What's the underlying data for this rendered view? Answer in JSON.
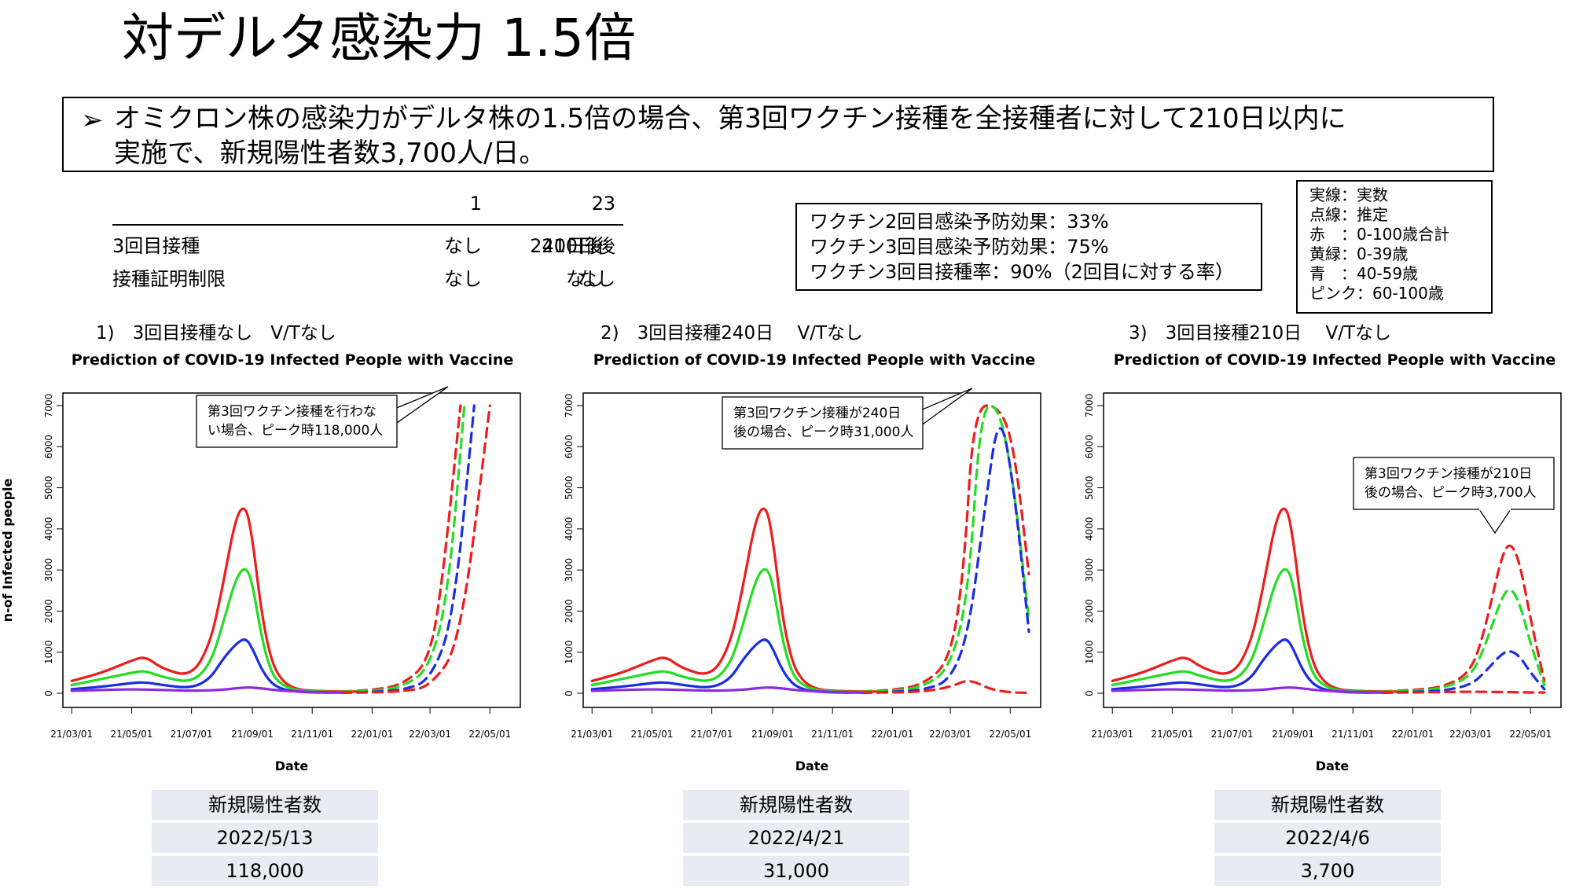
{
  "slide": {
    "title": "対デルタ感染力 1.5倍",
    "headline": {
      "bullet": "➢",
      "line1": "オミクロン株の感染力がデルタ株の1.5倍の場合、第3回ワクチン接種を全接種者に対して210日以内に",
      "line2": "実施で、新規陽性者数3,700人/日。"
    }
  },
  "scenario_table": {
    "columns": [
      "1",
      "2",
      "3"
    ],
    "rows": [
      {
        "label": "3回目接種",
        "values": [
          "なし",
          "240日後",
          "210日後"
        ]
      },
      {
        "label": "接種証明制限",
        "values": [
          "なし",
          "なし",
          "なし"
        ]
      }
    ]
  },
  "vaccine_box": {
    "lines": [
      "ワクチン2回目感染予防効果：33%",
      "ワクチン3回目感染予防効果：75%",
      "ワクチン3回目接種率：90%（2回目に対する率）"
    ]
  },
  "legend_box": {
    "lines": [
      "実線：実数",
      "点線：推定",
      "赤　：0-100歳合計",
      "黄緑：0-39歳",
      "青　：40-59歳",
      "ピンク：60-100歳"
    ]
  },
  "colors": {
    "red": "#ee1c1c",
    "green": "#22dd22",
    "blue": "#1a2ee0",
    "purple": "#8a2be2",
    "pink": "#ee82ee",
    "result_cell_bg": "#e8ebf3"
  },
  "chart_data": [
    {
      "type": "line",
      "scenario_label": "1)　3回目接種なし　V/Tなし",
      "title": "Prediction of COVID-19 Infected People with Vaccine",
      "xlabel": "Date",
      "ylabel": "n-of Infected people",
      "ylim": [
        0,
        7000
      ],
      "yticks": [
        0,
        1000,
        2000,
        3000,
        4000,
        5000,
        6000,
        7000
      ],
      "xticks": [
        "21/03/01",
        "21/05/01",
        "21/07/01",
        "21/09/01",
        "21/11/01",
        "22/01/01",
        "22/03/01",
        "22/05/01"
      ],
      "callout": [
        "第3回ワクチン接種を行わな",
        "い場合、ピーク時118,000人"
      ],
      "series": [
        {
          "name": "赤　：0-100歳合計",
          "style": "solid",
          "x": [
            "2021-03-01",
            "2021-04-01",
            "2021-05-01",
            "2021-05-15",
            "2021-06-01",
            "2021-07-01",
            "2021-07-20",
            "2021-08-01",
            "2021-08-15",
            "2021-08-25",
            "2021-09-01",
            "2021-09-10",
            "2021-09-20",
            "2021-10-01",
            "2021-10-15",
            "2021-11-01",
            "2021-12-01",
            "2021-12-15"
          ],
          "y": [
            300,
            500,
            800,
            900,
            600,
            400,
            1200,
            2500,
            4300,
            4600,
            3800,
            2000,
            800,
            300,
            100,
            60,
            40,
            40
          ]
        },
        {
          "name": "赤　：0-100歳合計",
          "style": "dashed",
          "x": [
            "2021-12-01",
            "2022-01-01",
            "2022-02-01",
            "2022-03-01",
            "2022-03-15",
            "2022-04-01"
          ],
          "y": [
            40,
            80,
            200,
            800,
            3000,
            7000
          ]
        },
        {
          "name": "黄緑：0-39歳",
          "style": "solid",
          "x": [
            "2021-03-01",
            "2021-04-01",
            "2021-05-01",
            "2021-05-15",
            "2021-06-01",
            "2021-07-01",
            "2021-07-20",
            "2021-08-01",
            "2021-08-15",
            "2021-08-25",
            "2021-09-01",
            "2021-09-10",
            "2021-09-20",
            "2021-10-01",
            "2021-10-15",
            "2021-11-01",
            "2021-12-01"
          ],
          "y": [
            200,
            350,
            500,
            550,
            400,
            250,
            700,
            1600,
            2800,
            3100,
            2700,
            1400,
            500,
            200,
            80,
            40,
            30
          ]
        },
        {
          "name": "黄緑：0-39歳",
          "style": "dashed",
          "x": [
            "2021-12-01",
            "2022-01-01",
            "2022-02-01",
            "2022-03-01",
            "2022-03-20",
            "2022-04-05"
          ],
          "y": [
            30,
            60,
            150,
            600,
            2500,
            7000
          ]
        },
        {
          "name": "青　：40-59歳",
          "style": "solid",
          "x": [
            "2021-03-01",
            "2021-04-01",
            "2021-05-01",
            "2021-05-15",
            "2021-06-01",
            "2021-07-01",
            "2021-07-20",
            "2021-08-01",
            "2021-08-15",
            "2021-08-25",
            "2021-09-01",
            "2021-09-10",
            "2021-09-20",
            "2021-10-01",
            "2021-10-15",
            "2021-11-01",
            "2021-12-01"
          ],
          "y": [
            100,
            160,
            250,
            270,
            200,
            120,
            350,
            800,
            1200,
            1350,
            1100,
            600,
            250,
            100,
            40,
            20,
            15
          ]
        },
        {
          "name": "青　：40-59歳",
          "style": "dashed",
          "x": [
            "2021-12-01",
            "2022-01-01",
            "2022-02-01",
            "2022-03-01",
            "2022-03-25",
            "2022-04-15"
          ],
          "y": [
            15,
            30,
            80,
            300,
            1800,
            7000
          ]
        },
        {
          "name": "ピンク：60-100歳",
          "style": "dashed",
          "x": [
            "2021-12-01",
            "2022-01-01",
            "2022-02-01",
            "2022-03-01",
            "2022-04-01",
            "2022-05-01"
          ],
          "y": [
            10,
            20,
            50,
            150,
            1200,
            7000
          ]
        },
        {
          "name": "purple",
          "style": "solid",
          "x": [
            "2021-03-01",
            "2021-04-01",
            "2021-05-01",
            "2021-06-01",
            "2021-07-01",
            "2021-08-01",
            "2021-08-25",
            "2021-09-10",
            "2021-10-01",
            "2021-11-01",
            "2021-12-01"
          ],
          "y": [
            60,
            80,
            100,
            80,
            60,
            80,
            150,
            120,
            60,
            30,
            20
          ]
        }
      ]
    },
    {
      "type": "line",
      "scenario_label": "2)　3回目接種240日　 V/Tなし",
      "title": "Prediction of COVID-19 Infected People with Vaccine",
      "xlabel": "Date",
      "ylabel": "",
      "ylim": [
        0,
        7000
      ],
      "yticks": [
        0,
        1000,
        2000,
        3000,
        4000,
        5000,
        6000,
        7000
      ],
      "xticks": [
        "21/03/01",
        "21/05/01",
        "21/07/01",
        "21/09/01",
        "21/11/01",
        "22/01/01",
        "22/03/01",
        "22/05/01"
      ],
      "callout": [
        "第3回ワクチン接種が240日",
        "後の場合、ピーク時31,000人"
      ],
      "series": [
        {
          "name": "赤　：0-100歳合計",
          "style": "solid",
          "x": [
            "2021-03-01",
            "2021-04-01",
            "2021-05-01",
            "2021-05-15",
            "2021-06-01",
            "2021-07-01",
            "2021-07-20",
            "2021-08-01",
            "2021-08-15",
            "2021-08-25",
            "2021-09-01",
            "2021-09-10",
            "2021-09-20",
            "2021-10-01",
            "2021-10-15",
            "2021-11-01",
            "2021-12-01",
            "2021-12-15"
          ],
          "y": [
            300,
            500,
            800,
            900,
            600,
            400,
            1200,
            2500,
            4300,
            4600,
            3800,
            2000,
            800,
            300,
            100,
            60,
            40,
            40
          ]
        },
        {
          "name": "赤　：0-100歳合計",
          "style": "dashed",
          "x": [
            "2021-12-01",
            "2022-01-01",
            "2022-02-01",
            "2022-03-01",
            "2022-03-15",
            "2022-03-25",
            "2022-04-20",
            "2022-05-05",
            "2022-05-20"
          ],
          "y": [
            40,
            80,
            200,
            800,
            3000,
            7000,
            7000,
            6000,
            2900
          ]
        },
        {
          "name": "黄緑：0-39歳",
          "style": "solid",
          "x": [
            "2021-03-01",
            "2021-04-01",
            "2021-05-01",
            "2021-05-15",
            "2021-06-01",
            "2021-07-01",
            "2021-07-20",
            "2021-08-01",
            "2021-08-15",
            "2021-08-25",
            "2021-09-01",
            "2021-09-10",
            "2021-09-20",
            "2021-10-01",
            "2021-10-15",
            "2021-11-01",
            "2021-12-01"
          ],
          "y": [
            200,
            350,
            500,
            550,
            400,
            250,
            700,
            1600,
            2800,
            3100,
            2700,
            1400,
            500,
            200,
            80,
            40,
            30
          ]
        },
        {
          "name": "黄緑：0-39歳",
          "style": "dashed",
          "x": [
            "2021-12-01",
            "2022-01-01",
            "2022-02-01",
            "2022-03-01",
            "2022-03-20",
            "2022-04-01",
            "2022-04-20",
            "2022-05-05",
            "2022-05-20"
          ],
          "y": [
            30,
            60,
            150,
            600,
            2500,
            7000,
            7000,
            5000,
            1800
          ]
        },
        {
          "name": "青　：40-59歳",
          "style": "solid",
          "x": [
            "2021-03-01",
            "2021-04-01",
            "2021-05-01",
            "2021-05-15",
            "2021-06-01",
            "2021-07-01",
            "2021-07-20",
            "2021-08-01",
            "2021-08-15",
            "2021-08-25",
            "2021-09-01",
            "2021-09-10",
            "2021-09-20",
            "2021-10-01",
            "2021-10-15",
            "2021-11-01",
            "2021-12-01"
          ],
          "y": [
            100,
            160,
            250,
            270,
            200,
            120,
            350,
            800,
            1200,
            1350,
            1100,
            600,
            250,
            100,
            40,
            20,
            15
          ]
        },
        {
          "name": "青　：40-59歳",
          "style": "dashed",
          "x": [
            "2021-12-01",
            "2022-01-01",
            "2022-02-01",
            "2022-03-01",
            "2022-03-20",
            "2022-04-05",
            "2022-04-20",
            "2022-05-05",
            "2022-05-20"
          ],
          "y": [
            15,
            30,
            80,
            300,
            1500,
            4500,
            7000,
            5000,
            1500
          ]
        },
        {
          "name": "ピンク：60-100歳",
          "style": "dashed",
          "x": [
            "2021-12-01",
            "2022-01-01",
            "2022-02-01",
            "2022-03-01",
            "2022-03-20",
            "2022-04-10",
            "2022-05-01",
            "2022-05-20"
          ],
          "y": [
            10,
            20,
            40,
            150,
            350,
            100,
            20,
            10
          ]
        },
        {
          "name": "purple",
          "style": "solid",
          "x": [
            "2021-03-01",
            "2021-04-01",
            "2021-05-01",
            "2021-06-01",
            "2021-07-01",
            "2021-08-01",
            "2021-08-25",
            "2021-09-10",
            "2021-10-01",
            "2021-11-01",
            "2021-12-01"
          ],
          "y": [
            60,
            80,
            100,
            80,
            60,
            80,
            150,
            120,
            60,
            30,
            20
          ]
        }
      ]
    },
    {
      "type": "line",
      "scenario_label": "3)　3回目接種210日　 V/Tなし",
      "title": "Prediction of COVID-19 Infected People with Vaccine",
      "xlabel": "Date",
      "ylabel": "",
      "ylim": [
        0,
        7000
      ],
      "yticks": [
        0,
        1000,
        2000,
        3000,
        4000,
        5000,
        6000,
        7000
      ],
      "xticks": [
        "21/03/01",
        "21/05/01",
        "21/07/01",
        "21/09/01",
        "21/11/01",
        "22/01/01",
        "22/03/01",
        "22/05/01"
      ],
      "callout": [
        "第3回ワクチン接種が210日",
        "後の場合、ピーク時3,700人"
      ],
      "series": [
        {
          "name": "赤　：0-100歳合計",
          "style": "solid",
          "x": [
            "2021-03-01",
            "2021-04-01",
            "2021-05-01",
            "2021-05-15",
            "2021-06-01",
            "2021-07-01",
            "2021-07-20",
            "2021-08-01",
            "2021-08-15",
            "2021-08-25",
            "2021-09-01",
            "2021-09-10",
            "2021-09-20",
            "2021-10-01",
            "2021-10-15",
            "2021-11-01",
            "2021-12-01",
            "2021-12-15"
          ],
          "y": [
            300,
            500,
            800,
            900,
            600,
            400,
            1200,
            2500,
            4300,
            4600,
            3800,
            2000,
            800,
            300,
            100,
            60,
            40,
            40
          ]
        },
        {
          "name": "赤　：0-100歳合計",
          "style": "dashed",
          "x": [
            "2021-12-01",
            "2022-01-01",
            "2022-02-01",
            "2022-03-01",
            "2022-03-15",
            "2022-04-01",
            "2022-04-10",
            "2022-04-20",
            "2022-05-01",
            "2022-05-15"
          ],
          "y": [
            40,
            80,
            150,
            500,
            1500,
            3300,
            3700,
            3200,
            1800,
            300
          ]
        },
        {
          "name": "黄緑：0-39歳",
          "style": "solid",
          "x": [
            "2021-03-01",
            "2021-04-01",
            "2021-05-01",
            "2021-05-15",
            "2021-06-01",
            "2021-07-01",
            "2021-07-20",
            "2021-08-01",
            "2021-08-15",
            "2021-08-25",
            "2021-09-01",
            "2021-09-10",
            "2021-09-20",
            "2021-10-01",
            "2021-10-15",
            "2021-11-01",
            "2021-12-01"
          ],
          "y": [
            200,
            350,
            500,
            550,
            400,
            250,
            700,
            1600,
            2800,
            3100,
            2700,
            1400,
            500,
            200,
            80,
            40,
            30
          ]
        },
        {
          "name": "黄緑：0-39歳",
          "style": "dashed",
          "x": [
            "2021-12-01",
            "2022-01-01",
            "2022-02-01",
            "2022-03-01",
            "2022-03-15",
            "2022-04-01",
            "2022-04-10",
            "2022-04-20",
            "2022-05-01",
            "2022-05-15"
          ],
          "y": [
            30,
            60,
            120,
            400,
            1100,
            2300,
            2600,
            2200,
            1200,
            200
          ]
        },
        {
          "name": "青　：40-59歳",
          "style": "solid",
          "x": [
            "2021-03-01",
            "2021-04-01",
            "2021-05-01",
            "2021-05-15",
            "2021-06-01",
            "2021-07-01",
            "2021-07-20",
            "2021-08-01",
            "2021-08-15",
            "2021-08-25",
            "2021-09-01",
            "2021-09-10",
            "2021-09-20",
            "2021-10-01",
            "2021-10-15",
            "2021-11-01",
            "2021-12-01"
          ],
          "y": [
            100,
            160,
            250,
            270,
            200,
            120,
            350,
            800,
            1200,
            1350,
            1100,
            600,
            250,
            100,
            40,
            20,
            15
          ]
        },
        {
          "name": "青　：40-59歳",
          "style": "dashed",
          "x": [
            "2021-12-01",
            "2022-01-01",
            "2022-02-01",
            "2022-03-01",
            "2022-03-15",
            "2022-04-01",
            "2022-04-10",
            "2022-04-20",
            "2022-05-01",
            "2022-05-15"
          ],
          "y": [
            15,
            30,
            60,
            200,
            500,
            950,
            1050,
            900,
            500,
            100
          ]
        },
        {
          "name": "ピンク：60-100歳",
          "style": "dashed",
          "x": [
            "2021-12-01",
            "2022-01-01",
            "2022-02-01",
            "2022-03-01",
            "2022-04-01",
            "2022-05-01",
            "2022-05-15"
          ],
          "y": [
            10,
            20,
            30,
            40,
            30,
            20,
            20
          ]
        },
        {
          "name": "purple",
          "style": "solid",
          "x": [
            "2021-03-01",
            "2021-04-01",
            "2021-05-01",
            "2021-06-01",
            "2021-07-01",
            "2021-08-01",
            "2021-08-25",
            "2021-09-10",
            "2021-10-01",
            "2021-11-01",
            "2021-12-01"
          ],
          "y": [
            60,
            80,
            100,
            80,
            60,
            80,
            150,
            120,
            60,
            30,
            20
          ]
        }
      ]
    }
  ],
  "results": [
    {
      "header": "新規陽性者数",
      "date": "2022/5/13",
      "value": "118,000"
    },
    {
      "header": "新規陽性者数",
      "date": "2022/4/21",
      "value": "31,000"
    },
    {
      "header": "新規陽性者数",
      "date": "2022/4/6",
      "value": "3,700"
    }
  ]
}
